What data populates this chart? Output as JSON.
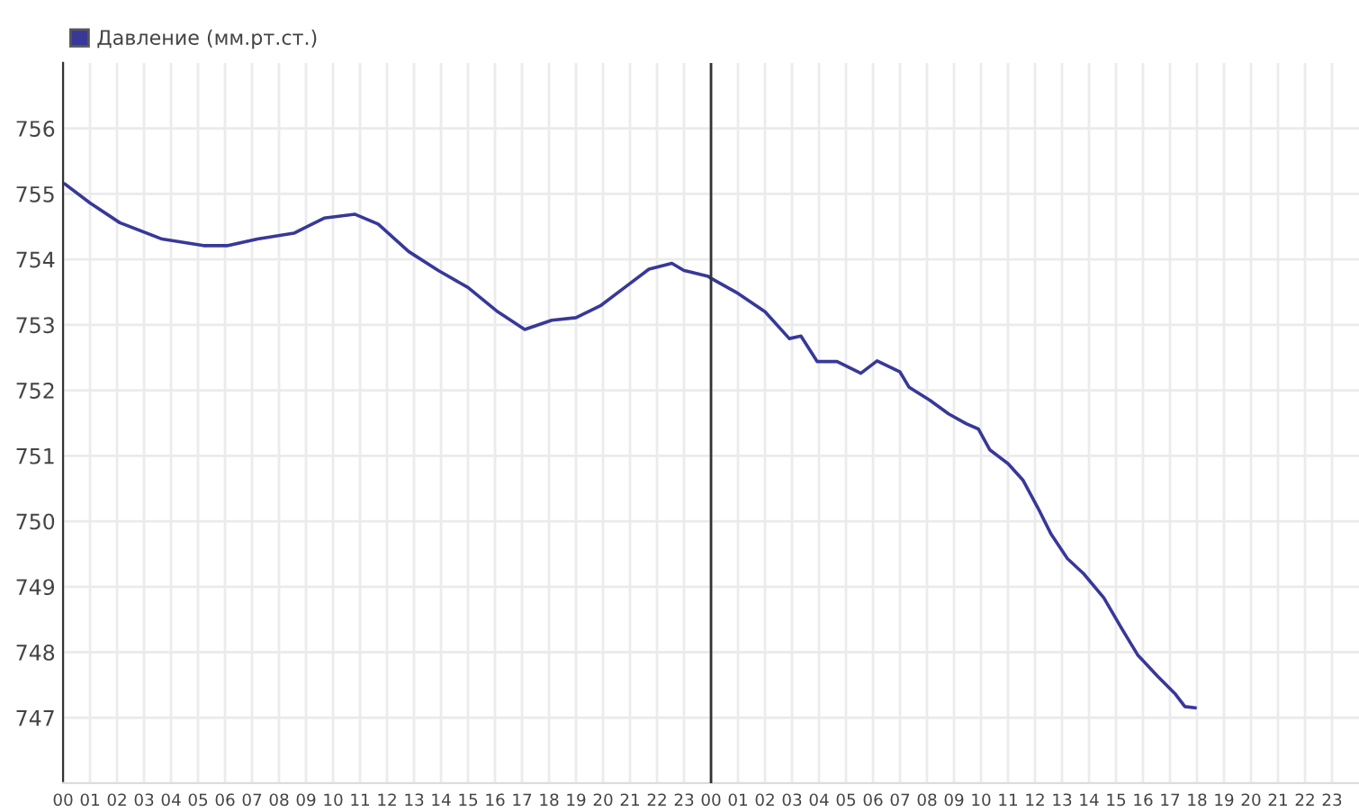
{
  "chart_data": {
    "type": "line",
    "legend": "top left",
    "grid": true,
    "series": [
      {
        "name": "Давление (мм.рт.ст.)",
        "color": "#38389a",
        "x": [
          0.07,
          1.0,
          2.1,
          3.67,
          5.2,
          6.1,
          7.2,
          8.55,
          9.67,
          10.8,
          11.67,
          12.8,
          13.9,
          15.0,
          16.1,
          17.1,
          18.1,
          19.0,
          19.9,
          20.8,
          21.7,
          22.55,
          23.0,
          23.9,
          24.0,
          25.0,
          26.0,
          26.9,
          27.33,
          27.93,
          28.67,
          29.55,
          30.15,
          31.0,
          31.33,
          32.1,
          32.8,
          33.45,
          33.9,
          34.33,
          35.0,
          35.55,
          36.1,
          36.6,
          37.2,
          37.8,
          38.55,
          39.2,
          39.8,
          40.55,
          41.2,
          41.55,
          41.93
        ],
        "values": [
          755.15,
          754.86,
          754.56,
          754.31,
          754.21,
          754.21,
          754.31,
          754.4,
          754.63,
          754.69,
          754.54,
          754.12,
          753.83,
          753.57,
          753.2,
          752.93,
          753.07,
          753.11,
          753.29,
          753.57,
          753.85,
          753.94,
          753.83,
          753.74,
          753.71,
          753.48,
          753.2,
          752.79,
          752.83,
          752.44,
          752.44,
          752.26,
          752.45,
          752.28,
          752.05,
          751.85,
          751.64,
          751.49,
          751.41,
          751.09,
          750.88,
          750.63,
          750.21,
          749.8,
          749.43,
          749.2,
          748.83,
          748.37,
          747.96,
          747.63,
          747.36,
          747.17,
          747.15
        ]
      }
    ],
    "xlim": [
      0,
      48
    ],
    "xticks": [
      {
        "value": 0,
        "label": "00"
      },
      {
        "value": 1,
        "label": "01"
      },
      {
        "value": 2,
        "label": "02"
      },
      {
        "value": 3,
        "label": "03"
      },
      {
        "value": 4,
        "label": "04"
      },
      {
        "value": 5,
        "label": "05"
      },
      {
        "value": 6,
        "label": "06"
      },
      {
        "value": 7,
        "label": "07"
      },
      {
        "value": 8,
        "label": "08"
      },
      {
        "value": 9,
        "label": "09"
      },
      {
        "value": 10,
        "label": "10"
      },
      {
        "value": 11,
        "label": "11"
      },
      {
        "value": 12,
        "label": "12"
      },
      {
        "value": 13,
        "label": "13"
      },
      {
        "value": 14,
        "label": "14"
      },
      {
        "value": 15,
        "label": "15"
      },
      {
        "value": 16,
        "label": "16"
      },
      {
        "value": 17,
        "label": "17"
      },
      {
        "value": 18,
        "label": "18"
      },
      {
        "value": 19,
        "label": "19"
      },
      {
        "value": 20,
        "label": "20"
      },
      {
        "value": 21,
        "label": "21"
      },
      {
        "value": 22,
        "label": "22"
      },
      {
        "value": 23,
        "label": "23"
      },
      {
        "value": 24,
        "label": "00"
      },
      {
        "value": 25,
        "label": "01"
      },
      {
        "value": 26,
        "label": "02"
      },
      {
        "value": 27,
        "label": "03"
      },
      {
        "value": 28,
        "label": "04"
      },
      {
        "value": 29,
        "label": "05"
      },
      {
        "value": 30,
        "label": "06"
      },
      {
        "value": 31,
        "label": "07"
      },
      {
        "value": 32,
        "label": "08"
      },
      {
        "value": 33,
        "label": "09"
      },
      {
        "value": 34,
        "label": "10"
      },
      {
        "value": 35,
        "label": "11"
      },
      {
        "value": 36,
        "label": "12"
      },
      {
        "value": 37,
        "label": "13"
      },
      {
        "value": 38,
        "label": "14"
      },
      {
        "value": 39,
        "label": "15"
      },
      {
        "value": 40,
        "label": "16"
      },
      {
        "value": 41,
        "label": "17"
      },
      {
        "value": 42,
        "label": "18"
      },
      {
        "value": 43,
        "label": "19"
      },
      {
        "value": 44,
        "label": "20"
      },
      {
        "value": 45,
        "label": "21"
      },
      {
        "value": 46,
        "label": "22"
      },
      {
        "value": 47,
        "label": "23"
      }
    ],
    "ylim": [
      746,
      757
    ],
    "yticks": [
      747,
      748,
      749,
      750,
      751,
      752,
      753,
      754,
      755,
      756
    ],
    "ref_lines": [
      {
        "axis": "x",
        "value": 24,
        "color": "#333333"
      }
    ]
  }
}
